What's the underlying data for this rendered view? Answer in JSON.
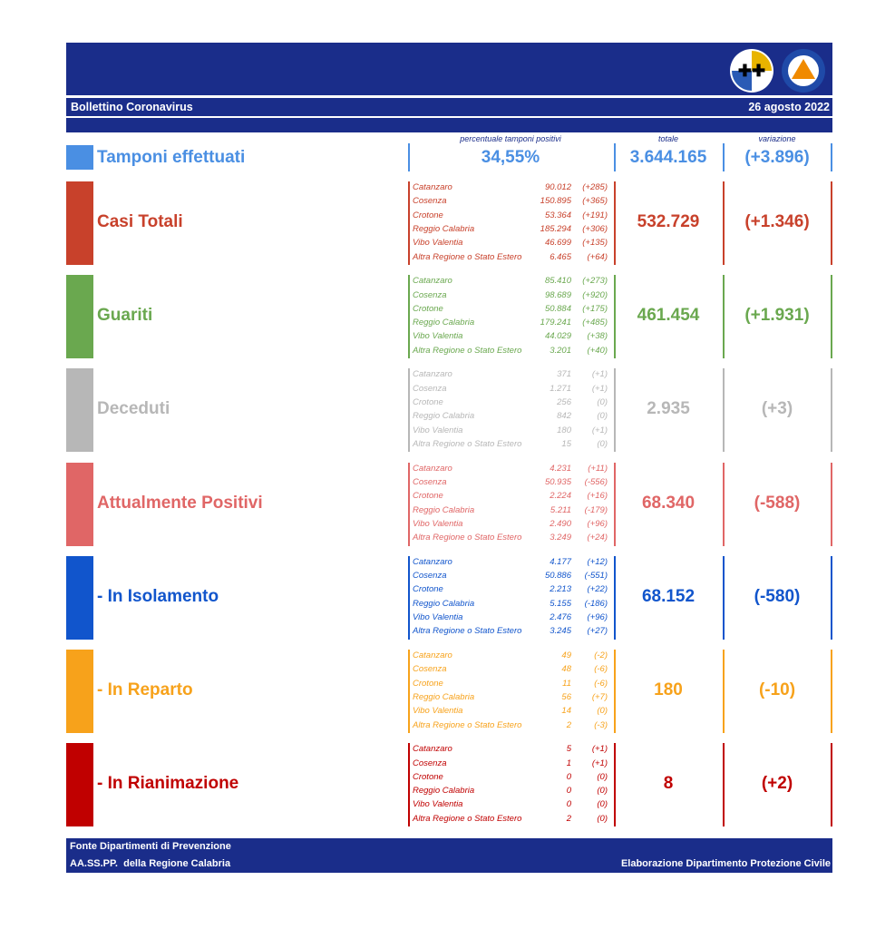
{
  "header": {
    "title": "Bollettino Coronavirus",
    "date": "26 agosto 2022"
  },
  "columns": {
    "percent": "percentuale tamponi positivi",
    "total": "totale",
    "change": "variazione"
  },
  "tests": {
    "label": "Tamponi effettuati",
    "color": "#4a8fe3",
    "percent": "34,55%",
    "total": "3.644.165",
    "change": "(+3.896)"
  },
  "sections": [
    {
      "label": "Casi Totali",
      "color": "#c8412b",
      "total": "532.729",
      "change": "(+1.346)",
      "rows": [
        {
          "name": "Catanzaro",
          "value": "90.012",
          "change": "(+285)"
        },
        {
          "name": "Cosenza",
          "value": "150.895",
          "change": "(+365)"
        },
        {
          "name": "Crotone",
          "value": "53.364",
          "change": "(+191)"
        },
        {
          "name": "Reggio Calabria",
          "value": "185.294",
          "change": "(+306)"
        },
        {
          "name": "Vibo Valentia",
          "value": "46.699",
          "change": "(+135)"
        },
        {
          "name": "Altra Regione o Stato Estero",
          "value": "6.465",
          "change": "(+64)"
        }
      ]
    },
    {
      "label": "Guariti",
      "color": "#6aa84f",
      "total": "461.454",
      "change": "(+1.931)",
      "rows": [
        {
          "name": "Catanzaro",
          "value": "85.410",
          "change": "(+273)"
        },
        {
          "name": "Cosenza",
          "value": "98.689",
          "change": "(+920)"
        },
        {
          "name": "Crotone",
          "value": "50.884",
          "change": "(+175)"
        },
        {
          "name": "Reggio Calabria",
          "value": "179.241",
          "change": "(+485)"
        },
        {
          "name": "Vibo Valentia",
          "value": "44.029",
          "change": "(+38)"
        },
        {
          "name": "Altra Regione o Stato Estero",
          "value": "3.201",
          "change": "(+40)"
        }
      ]
    },
    {
      "label": "Deceduti",
      "color": "#b7b7b7",
      "total": "2.935",
      "change": "(+3)",
      "rows": [
        {
          "name": "Catanzaro",
          "value": "371",
          "change": "(+1)"
        },
        {
          "name": "Cosenza",
          "value": "1.271",
          "change": "(+1)"
        },
        {
          "name": "Crotone",
          "value": "256",
          "change": "(0)"
        },
        {
          "name": "Reggio Calabria",
          "value": "842",
          "change": "(0)"
        },
        {
          "name": "Vibo Valentia",
          "value": "180",
          "change": "(+1)"
        },
        {
          "name": "Altra Regione o Stato Estero",
          "value": "15",
          "change": "(0)"
        }
      ]
    },
    {
      "label": "Attualmente Positivi",
      "color": "#e06666",
      "total": "68.340",
      "change": "(-588)",
      "rows": [
        {
          "name": "Catanzaro",
          "value": "4.231",
          "change": "(+11)"
        },
        {
          "name": "Cosenza",
          "value": "50.935",
          "change": "(-556)"
        },
        {
          "name": "Crotone",
          "value": "2.224",
          "change": "(+16)"
        },
        {
          "name": "Reggio Calabria",
          "value": "5.211",
          "change": "(-179)"
        },
        {
          "name": "Vibo Valentia",
          "value": "2.490",
          "change": "(+96)"
        },
        {
          "name": "Altra Regione o Stato Estero",
          "value": "3.249",
          "change": "(+24)"
        }
      ]
    },
    {
      "label": "- In Isolamento",
      "color": "#1155cc",
      "total": "68.152",
      "change": "(-580)",
      "rows": [
        {
          "name": "Catanzaro",
          "value": "4.177",
          "change": "(+12)"
        },
        {
          "name": "Cosenza",
          "value": "50.886",
          "change": "(-551)"
        },
        {
          "name": "Crotone",
          "value": "2.213",
          "change": "(+22)"
        },
        {
          "name": "Reggio Calabria",
          "value": "5.155",
          "change": "(-186)"
        },
        {
          "name": "Vibo Valentia",
          "value": "2.476",
          "change": "(+96)"
        },
        {
          "name": "Altra Regione o Stato Estero",
          "value": "3.245",
          "change": "(+27)"
        }
      ]
    },
    {
      "label": "- In Reparto",
      "color": "#f7a21b",
      "total": "180",
      "change": "(-10)",
      "rows": [
        {
          "name": "Catanzaro",
          "value": "49",
          "change": "(-2)"
        },
        {
          "name": "Cosenza",
          "value": "48",
          "change": "(-6)"
        },
        {
          "name": "Crotone",
          "value": "11",
          "change": "(-6)"
        },
        {
          "name": "Reggio Calabria",
          "value": "56",
          "change": "(+7)"
        },
        {
          "name": "Vibo Valentia",
          "value": "14",
          "change": "(0)"
        },
        {
          "name": "Altra Regione o Stato Estero",
          "value": "2",
          "change": "(-3)"
        }
      ]
    },
    {
      "label": "- In Rianimazione",
      "color": "#c00000",
      "total": "8",
      "change": "(+2)",
      "rows": [
        {
          "name": "Catanzaro",
          "value": "5",
          "change": "(+1)"
        },
        {
          "name": "Cosenza",
          "value": "1",
          "change": "(+1)"
        },
        {
          "name": "Crotone",
          "value": "0",
          "change": "(0)"
        },
        {
          "name": "Reggio Calabria",
          "value": "0",
          "change": "(0)"
        },
        {
          "name": "Vibo Valentia",
          "value": "0",
          "change": "(0)"
        },
        {
          "name": "Altra Regione o Stato Estero",
          "value": "2",
          "change": "(0)"
        }
      ]
    }
  ],
  "footer": {
    "source_line1": "Fonte Dipartimenti di Prevenzione",
    "source_line2": "AA.SS.PP.  della Regione Calabria",
    "credit": "Elaborazione Dipartimento Protezione Civile"
  }
}
